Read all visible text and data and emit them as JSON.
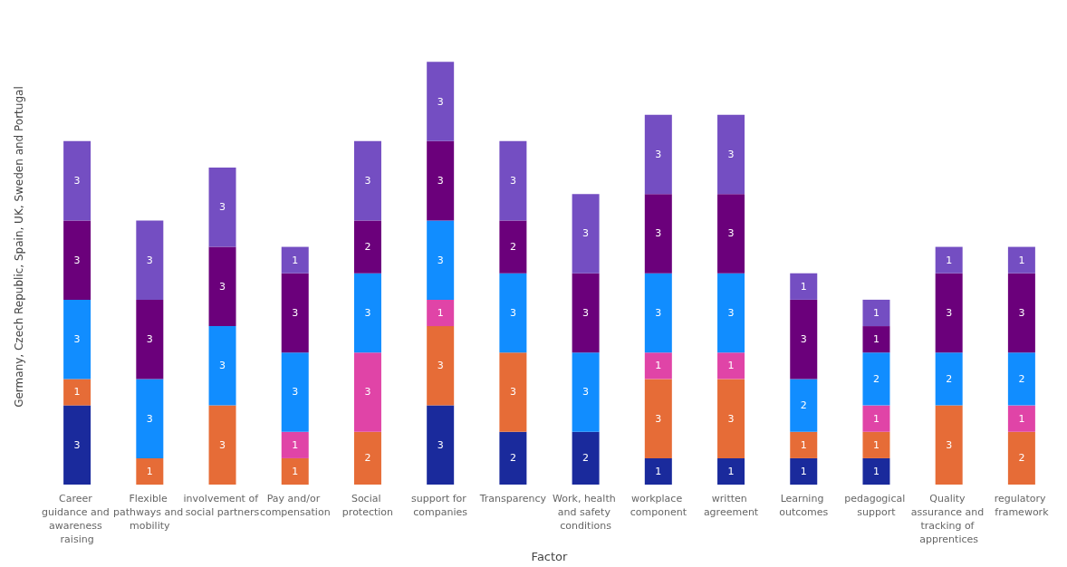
{
  "chart_data": {
    "type": "bar",
    "stacked": true,
    "data_labels": true,
    "grid": false,
    "tick_labels": "x",
    "xlabel": "Factor",
    "ylabel": "Germany, Czech Republic, Spain, UK, Sweden and Portugal",
    "categories": [
      "Career guidance and awareness raising",
      "Flexible pathways and mobility",
      "involvement of social partners",
      "Pay and/or compensation",
      "Social protection",
      "support for companies",
      "Transparency",
      "Work, health and safety conditions",
      "workplace component",
      "written agreement",
      "Learning outcomes",
      "pedagogical support",
      "Quality assurance and tracking of apprentices",
      "regulatory framework"
    ],
    "series": [
      {
        "color": "#1a2a9c",
        "values": [
          3,
          null,
          null,
          null,
          null,
          3,
          2,
          2,
          1,
          1,
          1,
          1,
          null,
          null
        ]
      },
      {
        "color": "#e66c37",
        "values": [
          1,
          1,
          3,
          1,
          2,
          3,
          3,
          null,
          3,
          3,
          1,
          1,
          3,
          2
        ]
      },
      {
        "color": "#e044a7",
        "values": [
          null,
          null,
          null,
          1,
          3,
          1,
          null,
          null,
          1,
          1,
          null,
          1,
          null,
          1
        ]
      },
      {
        "color": "#118dff",
        "values": [
          3,
          3,
          3,
          3,
          3,
          3,
          3,
          3,
          3,
          3,
          2,
          2,
          2,
          2
        ]
      },
      {
        "color": "#6b007b",
        "values": [
          3,
          3,
          3,
          3,
          2,
          3,
          2,
          3,
          3,
          3,
          3,
          1,
          3,
          3
        ]
      },
      {
        "color": "#744ec2",
        "values": [
          3,
          3,
          3,
          1,
          3,
          3,
          3,
          3,
          3,
          3,
          1,
          1,
          1,
          1
        ]
      }
    ]
  }
}
